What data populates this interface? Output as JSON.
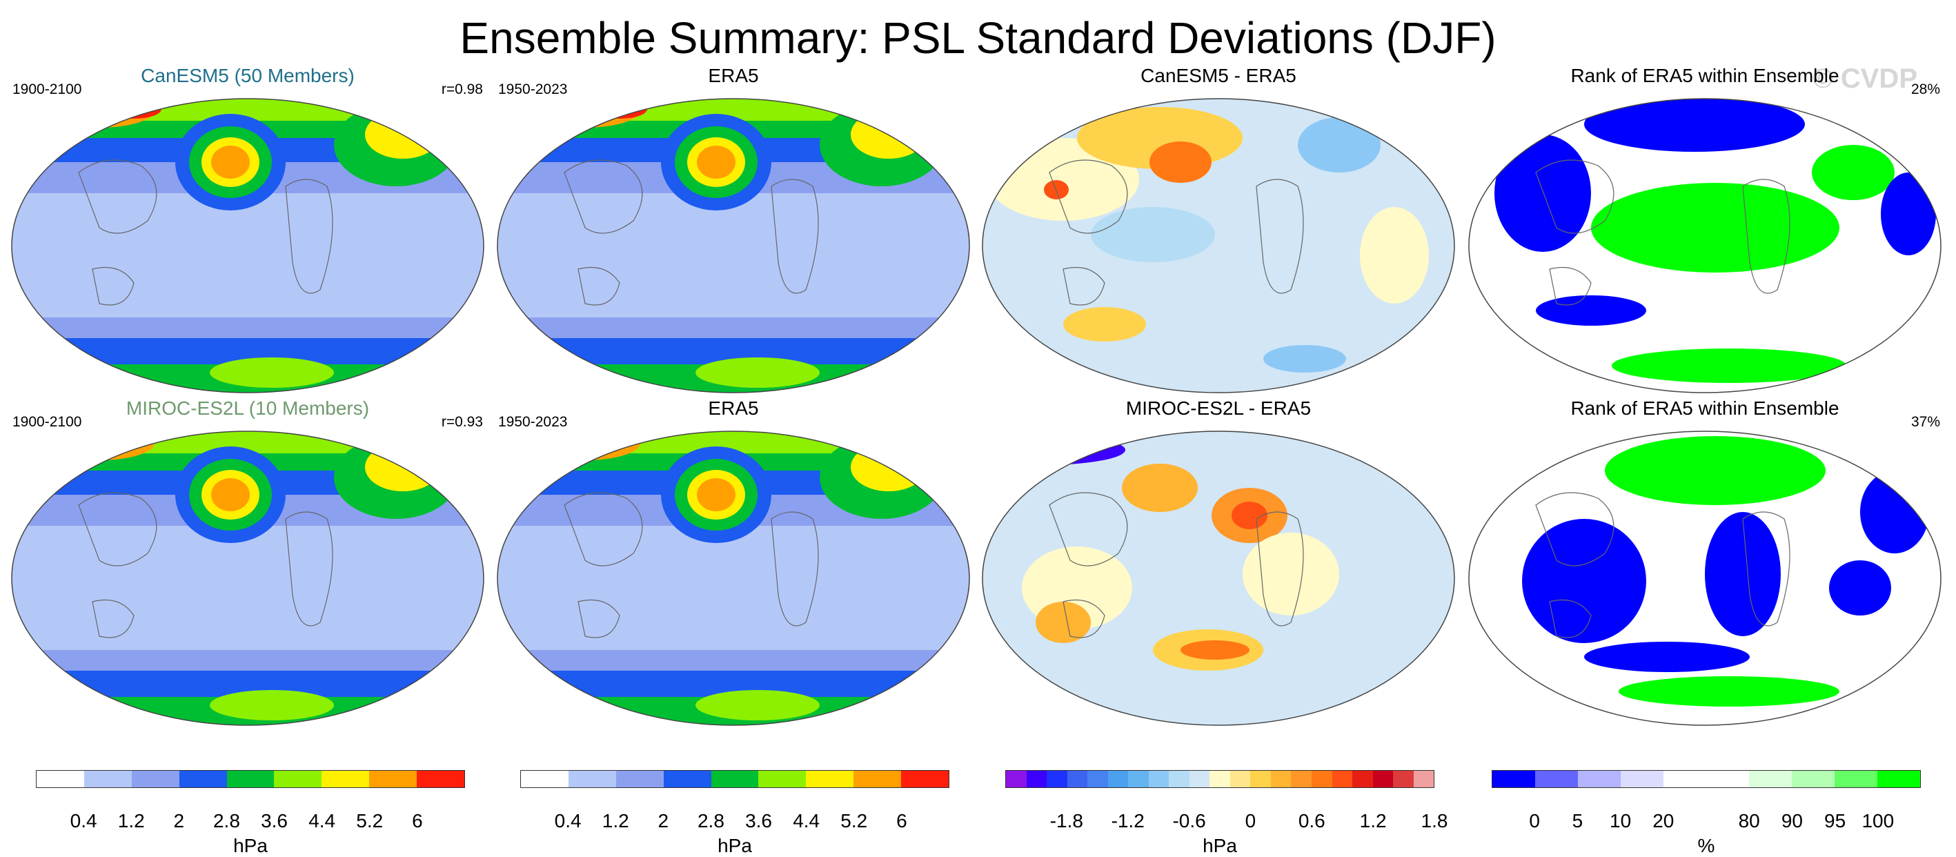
{
  "title": "Ensemble Summary: PSL Standard Deviations (DJF)",
  "watermark": "© CVDP",
  "rows": [
    {
      "panels": [
        {
          "title": "CanESM5 (50 Members)",
          "title_color": "#1f6f8b",
          "left": "1900-2100",
          "right": "r=0.98",
          "kind": "std"
        },
        {
          "title": "ERA5",
          "title_color": "#000000",
          "left": "1950-2023",
          "right": "",
          "kind": "std"
        },
        {
          "title": "CanESM5 - ERA5",
          "title_color": "#000000",
          "left": "",
          "right": "",
          "kind": "diff"
        },
        {
          "title": "Rank of ERA5 within Ensemble",
          "title_color": "#000000",
          "left": "",
          "right": "28%",
          "kind": "rank"
        }
      ]
    },
    {
      "panels": [
        {
          "title": "MIROC-ES2L (10 Members)",
          "title_color": "#6e9a6e",
          "left": "1900-2100",
          "right": "r=0.93",
          "kind": "std"
        },
        {
          "title": "ERA5",
          "title_color": "#000000",
          "left": "1950-2023",
          "right": "",
          "kind": "std"
        },
        {
          "title": "MIROC-ES2L - ERA5",
          "title_color": "#000000",
          "left": "",
          "right": "",
          "kind": "diff"
        },
        {
          "title": "Rank of ERA5 within Ensemble",
          "title_color": "#000000",
          "left": "",
          "right": "37%",
          "kind": "rank"
        }
      ]
    }
  ],
  "colorbars": [
    {
      "name": "std",
      "unit": "hPa",
      "colors": [
        "#ffffff",
        "#b4c8f8",
        "#8ca0f0",
        "#1c5af0",
        "#00be32",
        "#8cf000",
        "#fff000",
        "#ffa000",
        "#ff1e0a"
      ],
      "ticks": [
        "0.4",
        "1.2",
        "2",
        "2.8",
        "3.6",
        "4.4",
        "5.2",
        "6"
      ]
    },
    {
      "name": "std",
      "unit": "hPa",
      "colors": [
        "#ffffff",
        "#b4c8f8",
        "#8ca0f0",
        "#1c5af0",
        "#00be32",
        "#8cf000",
        "#fff000",
        "#ffa000",
        "#ff1e0a"
      ],
      "ticks": [
        "0.4",
        "1.2",
        "2",
        "2.8",
        "3.6",
        "4.4",
        "5.2",
        "6"
      ]
    },
    {
      "name": "diff",
      "unit": "hPa",
      "colors": [
        "#8c14e6",
        "#3c00ff",
        "#1e32ff",
        "#3c64f0",
        "#4682f0",
        "#4ba0f0",
        "#64b4f0",
        "#8cc8f5",
        "#b4dcf5",
        "#d2e6f5",
        "#fffac8",
        "#ffe68c",
        "#ffd24b",
        "#ffb432",
        "#ff9628",
        "#ff7814",
        "#ff5014",
        "#e61e14",
        "#c8001e",
        "#dc3c3c",
        "#f0a0a0"
      ],
      "ticks": [
        "-1.8",
        "-1.2",
        "-0.6",
        "0",
        "0.6",
        "1.2",
        "1.8"
      ]
    },
    {
      "name": "rank",
      "unit": "%",
      "colors": [
        "#0000ff",
        "#6464ff",
        "#b4b4ff",
        "#dcdcff",
        "#ffffff",
        "#ffffff",
        "#dcffdc",
        "#b4ffb4",
        "#64ff64",
        "#00ff00"
      ],
      "ticks": [
        "0",
        "5",
        "10",
        "20",
        "80",
        "90",
        "95",
        "100"
      ]
    }
  ]
}
